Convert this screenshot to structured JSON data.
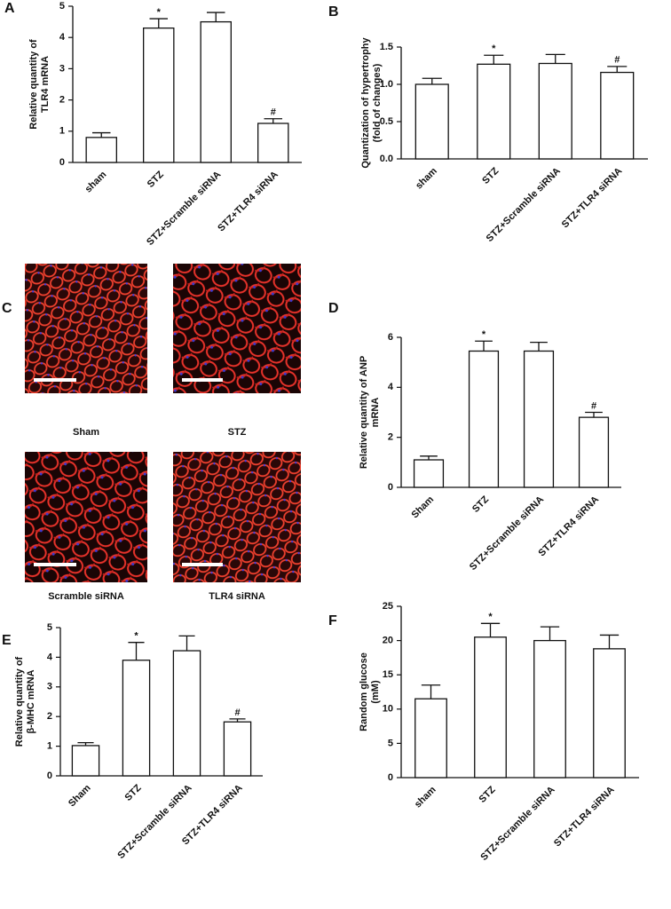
{
  "chart_data": [
    {
      "type": "bar",
      "label": "A",
      "ylabel": [
        "Relative quantity of",
        "TLR4 mRNA"
      ],
      "categories": [
        "sham",
        "STZ",
        "STZ+Scramble siRNA",
        "STZ+TLR4 siRNA"
      ],
      "values": [
        0.8,
        4.3,
        4.5,
        1.25
      ],
      "errors": [
        0.15,
        0.3,
        0.3,
        0.15
      ],
      "annotations": [
        null,
        "*",
        null,
        "#"
      ],
      "color": "#ffffff",
      "ylim": [
        0,
        5
      ],
      "yticks": [
        0,
        1,
        2,
        3,
        4,
        5
      ]
    },
    {
      "type": "bar",
      "label": "B",
      "ylabel": [
        "Quantization of hypertrophy",
        "(fold of changes)"
      ],
      "categories": [
        "sham",
        "STZ",
        "STZ+Scramble siRNA",
        "STZ+TLR4 siRNA"
      ],
      "values": [
        1.0,
        1.27,
        1.28,
        1.16
      ],
      "errors": [
        0.08,
        0.12,
        0.12,
        0.08
      ],
      "annotations": [
        null,
        "*",
        null,
        "#"
      ],
      "color": "#ffffff",
      "ylim": [
        0,
        1.5
      ],
      "yticks": [
        {
          "value": 0,
          "label": "0.0"
        },
        {
          "value": 0.5,
          "label": "0.5"
        },
        {
          "value": 1,
          "label": "1.0"
        },
        {
          "value": 1.5,
          "label": "1.5"
        }
      ]
    },
    {
      "type": "bar",
      "label": "D",
      "ylabel": [
        "Relative quantity of ANP",
        "mRNA"
      ],
      "categories": [
        "Sham",
        "STZ",
        "STZ+Scramble siRNA",
        "STZ+TLR4 siRNA"
      ],
      "values": [
        1.1,
        5.45,
        5.45,
        2.8
      ],
      "errors": [
        0.15,
        0.4,
        0.35,
        0.2
      ],
      "annotations": [
        null,
        "*",
        null,
        "#"
      ],
      "color": "#ffffff",
      "ylim": [
        0,
        6
      ],
      "yticks": [
        0,
        2,
        4,
        6
      ]
    },
    {
      "type": "bar",
      "label": "E",
      "ylabel": [
        "Relative quantity of",
        "β-MHC mRNA"
      ],
      "categories": [
        "Sham",
        "STZ",
        "STZ+Scramble siRNA",
        "STZ+TLR4 siRNA"
      ],
      "values": [
        1.02,
        3.9,
        4.22,
        1.82
      ],
      "errors": [
        0.1,
        0.6,
        0.5,
        0.1
      ],
      "annotations": [
        null,
        "*",
        null,
        "#"
      ],
      "color": "#ffffff",
      "ylim": [
        0,
        5
      ],
      "yticks": [
        0,
        1,
        2,
        3,
        4,
        5
      ]
    },
    {
      "type": "bar",
      "label": "F",
      "ylabel": [
        "Random glucose",
        "(mM)"
      ],
      "categories": [
        "sham",
        "STZ",
        "STZ+Scramble siRNA",
        "STZ+TLR4 siRNA"
      ],
      "values": [
        11.5,
        20.5,
        20.0,
        18.8
      ],
      "errors": [
        2.0,
        2.0,
        2.0,
        2.0
      ],
      "annotations": [
        null,
        "*",
        null,
        null
      ],
      "color": "#ffffff",
      "ylim": [
        0,
        25
      ],
      "yticks": [
        0,
        5,
        10,
        15,
        20,
        25
      ]
    }
  ],
  "image_panel": {
    "label": "C",
    "captions": [
      "Sham",
      "STZ",
      "Scramble siRNA",
      "TLR4 siRNA"
    ]
  }
}
